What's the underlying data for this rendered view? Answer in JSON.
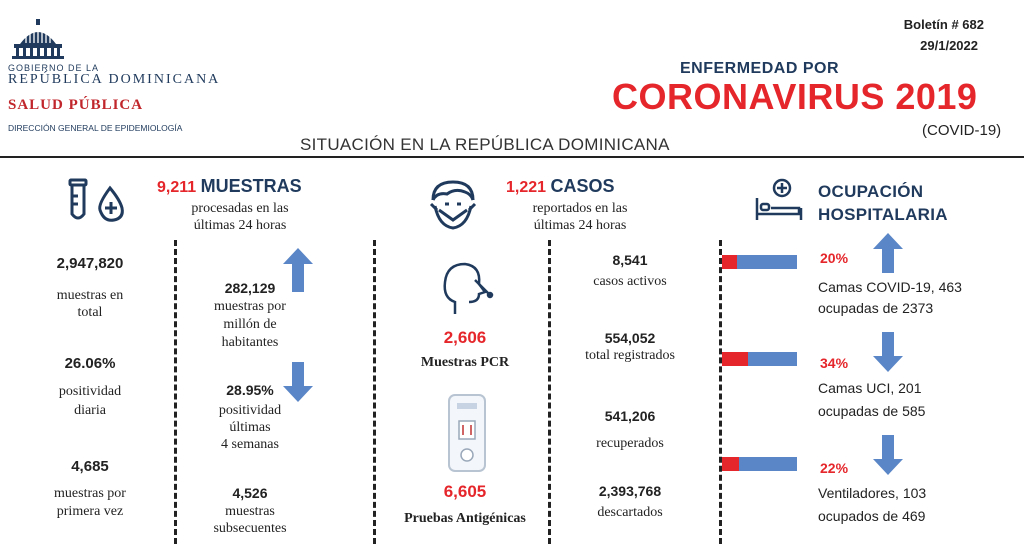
{
  "header": {
    "gov_line1": "GOBIERNO DE LA",
    "gov_line2": "REPÚBLICA DOMINICANA",
    "ministry": "SALUD PÚBLICA",
    "directorate": "DIRECCIÓN GENERAL DE EPIDEMIOLOGÍA",
    "bulletin": "Boletín # 682",
    "date": "29/1/2022",
    "disease_line1": "ENFERMEDAD POR",
    "disease_line2": "CORONAVIRUS 2019",
    "disease_code": "(COVID-19)",
    "subtitle": "SITUACIÓN EN LA REPÚBLICA DOMINICANA"
  },
  "muestras": {
    "count_24h": "9,211",
    "title": "MUESTRAS",
    "desc_line1": "procesadas en las",
    "desc_line2": "últimas 24 horas",
    "total_value": "2,947,820",
    "total_label_1": "muestras en",
    "total_label_2": "total",
    "positividad_diaria_value": "26.06%",
    "positividad_diaria_label_1": "positividad",
    "positividad_diaria_label_2": "diaria",
    "primera_vez_value": "4,685",
    "primera_vez_label_1": "muestras por",
    "primera_vez_label_2": "primera vez",
    "per_million_value": "282,129",
    "per_million_label_1": "muestras por",
    "per_million_label_2": "millón de",
    "per_million_label_3": "habitantes",
    "positividad_4s_value": "28.95%",
    "positividad_4s_label_1": "positividad",
    "positividad_4s_label_2": "últimas",
    "positividad_4s_label_3": "4 semanas",
    "subsecuentes_value": "4,526",
    "subsecuentes_label_1": "muestras",
    "subsecuentes_label_2": "subsecuentes"
  },
  "pruebas": {
    "pcr_value": "2,606",
    "pcr_label": "Muestras PCR",
    "antigen_value": "6,605",
    "antigen_label": "Pruebas Antigénicas"
  },
  "casos": {
    "count_24h": "1,221",
    "title": "CASOS",
    "desc_line1": "reportados en las",
    "desc_line2": "últimas 24 horas",
    "activos_value": "8,541",
    "activos_label": "casos activos",
    "registrados_value": "554,052",
    "registrados_label": "total registrados",
    "recuperados_value": "541,206",
    "recuperados_label": "recuperados",
    "descartados_value": "2,393,768",
    "descartados_label": "descartados"
  },
  "ocupacion": {
    "title_line1": "OCUPACIÓN",
    "title_line2": "HOSPITALARIA",
    "items": [
      {
        "percent": "20%",
        "fraction": 0.2,
        "trend": "up",
        "line1": "Camas COVID-19,  463",
        "line2": "ocupadas de 2373"
      },
      {
        "percent": "34%",
        "fraction": 0.34,
        "trend": "down",
        "line1": "Camas UCI,  201",
        "line2": "ocupadas de 585"
      },
      {
        "percent": "22%",
        "fraction": 0.22,
        "trend": "down",
        "line1": "Ventiladores, 103",
        "line2": "ocupados de 469"
      }
    ]
  },
  "trends": {
    "per_million": "up",
    "positividad_4s": "down"
  },
  "colors": {
    "accent_red": "#e5262b",
    "navy": "#1f3a5c",
    "arrow_blue": "#5a86c7"
  }
}
